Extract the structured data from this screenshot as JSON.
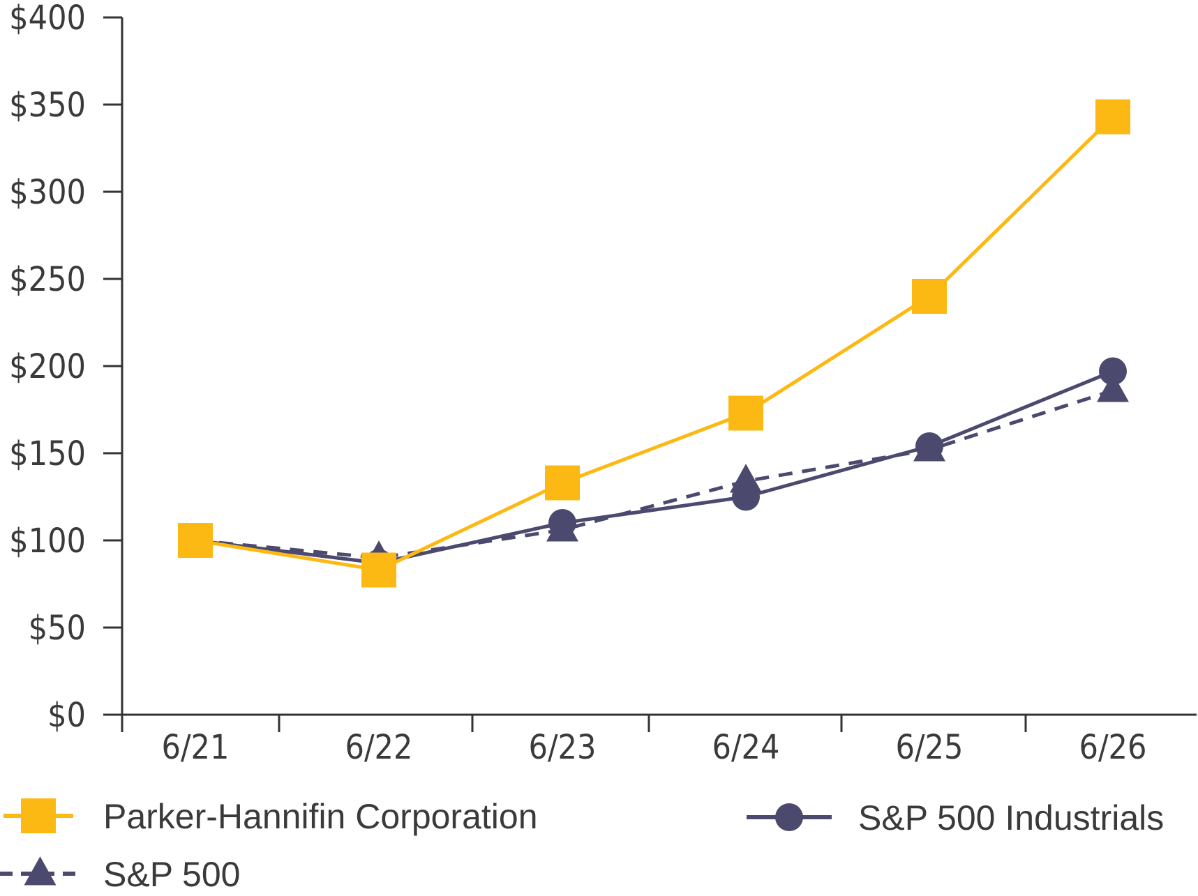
{
  "chart_data": {
    "type": "line",
    "title": "",
    "xlabel": "",
    "ylabel": "",
    "categories": [
      "6/21",
      "6/22",
      "6/23",
      "6/24",
      "6/25",
      "6/26"
    ],
    "y_ticks": [
      "$0",
      "$50",
      "$100",
      "$150",
      "$200",
      "$250",
      "$300",
      "$350",
      "$400"
    ],
    "ylim": [
      0,
      400
    ],
    "grid": false,
    "legend_position": "bottom",
    "series": [
      {
        "name": "Parker-Hannifin Corporation",
        "values": [
          100,
          83,
          133,
          173,
          240,
          343
        ],
        "color": "#FDB913",
        "marker": "square",
        "line": "solid"
      },
      {
        "name": "S&P 500",
        "values": [
          100,
          90,
          106,
          134,
          152,
          186
        ],
        "color": "#4B4A6E",
        "marker": "triangle",
        "line": "dashed"
      },
      {
        "name": "S&P 500 Industrials",
        "values": [
          100,
          87,
          110,
          125,
          154,
          197
        ],
        "color": "#4B4A6E",
        "marker": "circle",
        "line": "solid"
      }
    ]
  }
}
